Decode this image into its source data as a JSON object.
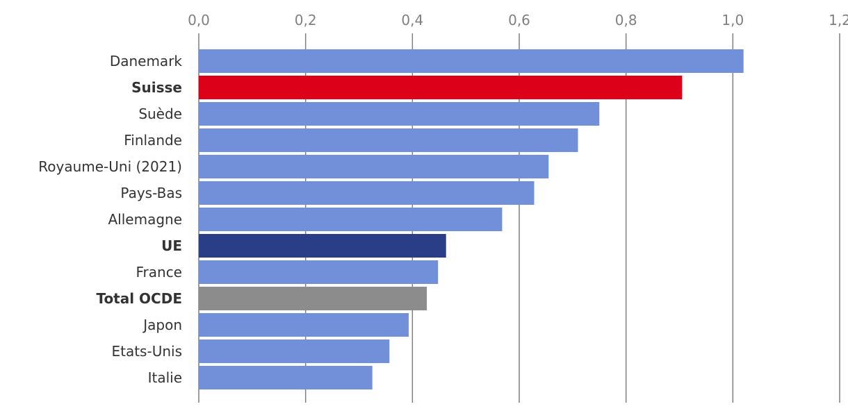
{
  "chart_data": {
    "type": "bar",
    "orientation": "horizontal",
    "title": "",
    "xlabel": "",
    "ylabel": "",
    "xlim": [
      0,
      1.2
    ],
    "x_ticks": [
      "0,0",
      "0,2",
      "0,4",
      "0,6",
      "0,8",
      "1,0",
      "1,2"
    ],
    "x_tick_values": [
      0,
      0.2,
      0.4,
      0.6,
      0.8,
      1.0,
      1.2
    ],
    "axis_position": "top",
    "grid": true,
    "categories": [
      "Danemark",
      "Suisse",
      "Suède",
      "Finlande",
      "Royaume-Uni (2021)",
      "Pays-Bas",
      "Allemagne",
      "UE",
      "France",
      "Total OCDE",
      "Japon",
      "Etats-Unis",
      "Italie"
    ],
    "values": [
      1.02,
      0.905,
      0.75,
      0.71,
      0.655,
      0.628,
      0.568,
      0.463,
      0.448,
      0.427,
      0.393,
      0.357,
      0.325
    ],
    "highlighted": [
      false,
      true,
      false,
      false,
      false,
      false,
      false,
      true,
      false,
      true,
      false,
      false,
      false
    ],
    "bar_colors": [
      "#7190d9",
      "#dc0018",
      "#7190d9",
      "#7190d9",
      "#7190d9",
      "#7190d9",
      "#7190d9",
      "#2a3e87",
      "#7190d9",
      "#8c8c8c",
      "#7190d9",
      "#7190d9",
      "#7190d9"
    ]
  }
}
